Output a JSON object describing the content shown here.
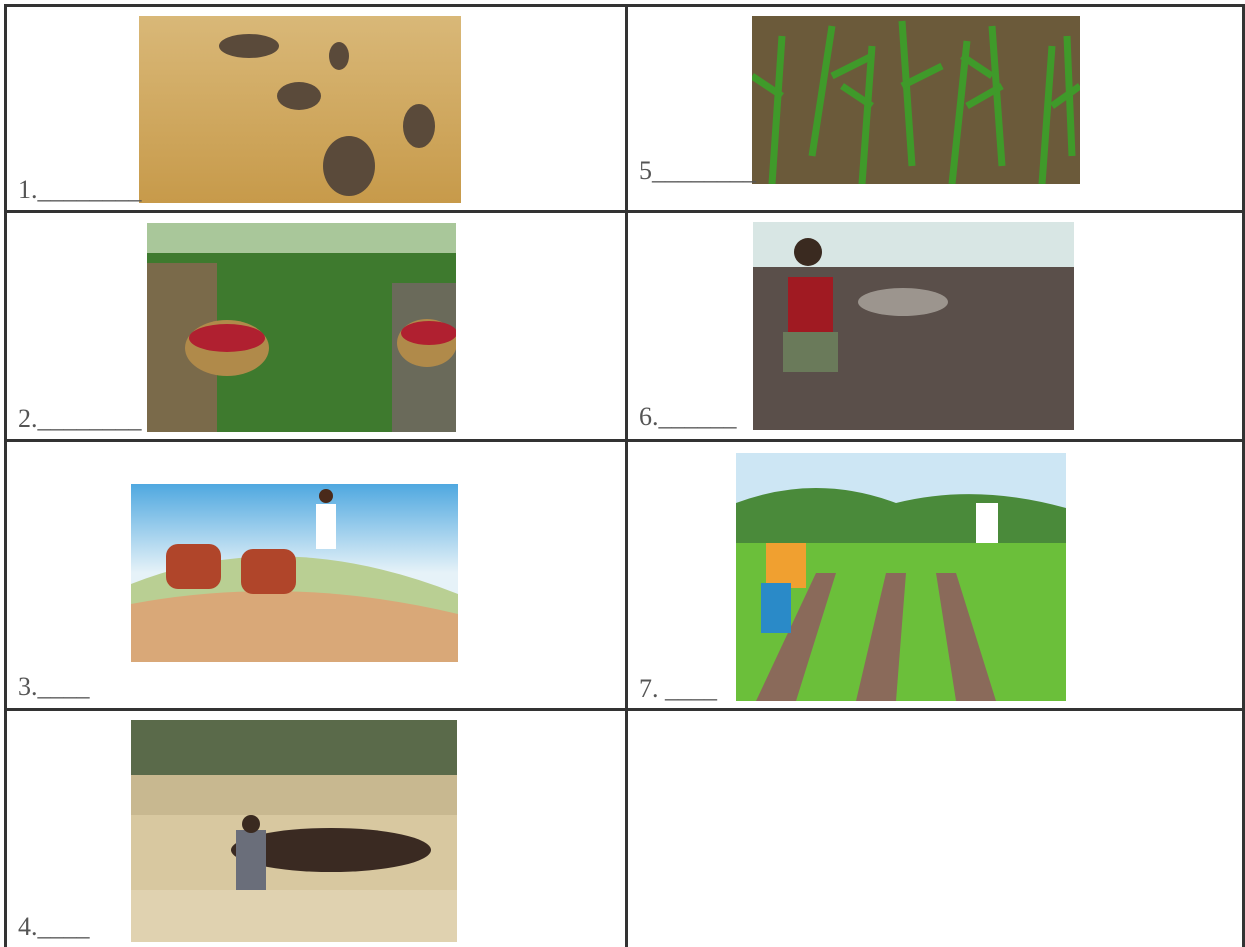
{
  "cells": [
    {
      "label": "1.________"
    },
    {
      "label": "5________"
    },
    {
      "label": "2.________"
    },
    {
      "label": "6.______"
    },
    {
      "label": "3.____"
    },
    {
      "label": "7. ____"
    },
    {
      "label": "4.____"
    }
  ]
}
